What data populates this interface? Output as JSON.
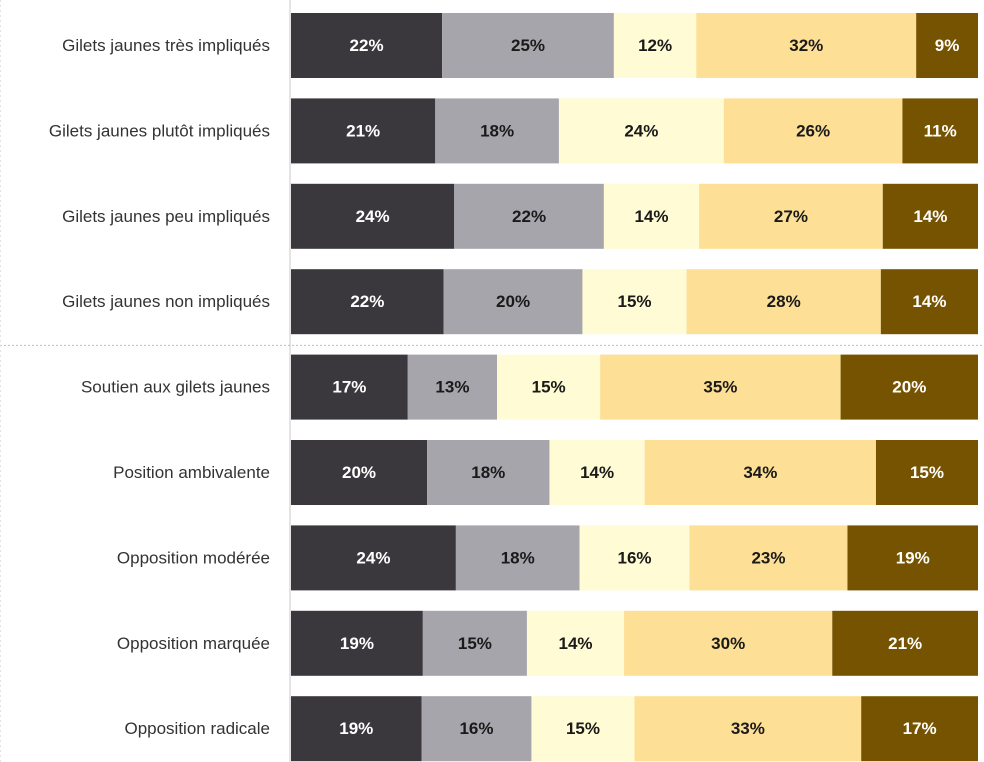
{
  "chart_data": {
    "type": "bar",
    "orientation": "horizontal",
    "stacked": true,
    "percent_stacked": true,
    "value_suffix": "%",
    "title": "",
    "xlabel": "",
    "ylabel": "",
    "grid": false,
    "legend": "none",
    "categories": [
      "Gilets jaunes très impliqués",
      "Gilets jaunes plutôt impliqués",
      "Gilets jaunes peu impliqués",
      "Gilets jaunes non impliqués",
      "Soutien aux gilets jaunes",
      "Position ambivalente",
      "Opposition modérée",
      "Opposition marquée",
      "Opposition radicale"
    ],
    "group_separator_after": 3,
    "series": [
      {
        "color": "#3a383d",
        "label_color": "#ffffff",
        "values": [
          22,
          21,
          24,
          22,
          17,
          20,
          24,
          19,
          19
        ]
      },
      {
        "color": "#a6a5ab",
        "label_color": "#1a1a1a",
        "values": [
          25,
          18,
          22,
          20,
          13,
          18,
          18,
          15,
          16
        ]
      },
      {
        "color": "#fffbd5",
        "label_color": "#1a1a1a",
        "values": [
          12,
          24,
          14,
          15,
          15,
          14,
          16,
          14,
          15
        ]
      },
      {
        "color": "#fddf95",
        "label_color": "#1a1a1a",
        "values": [
          32,
          26,
          27,
          28,
          35,
          34,
          23,
          30,
          33
        ]
      },
      {
        "color": "#765300",
        "label_color": "#ffffff",
        "values": [
          9,
          11,
          14,
          14,
          20,
          15,
          19,
          21,
          17
        ]
      }
    ]
  }
}
